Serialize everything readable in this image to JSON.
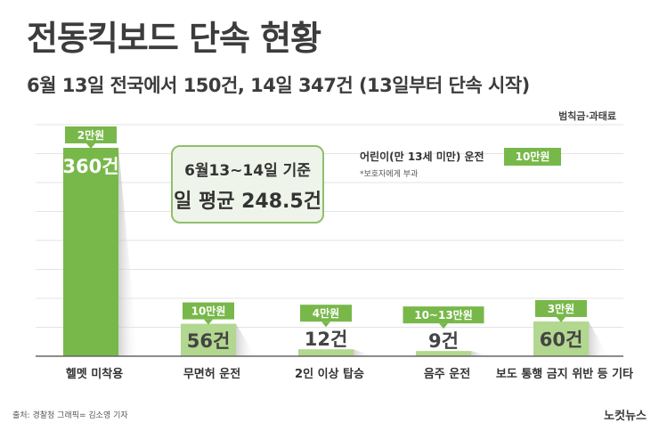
{
  "title": "전동킥보드 단속 현황",
  "subtitle": "6월 13일 전국에서 150건, 14일 347건 (13일부터 단속 시작)",
  "unit_label": "범칙금·과태료",
  "callout": {
    "line1": "6월13~14일 기준",
    "line2": "일 평균 248.5건"
  },
  "note": {
    "main": "어린이(만 13세 미만) 운전",
    "sub": "*보호자에게 부과",
    "tag": "10만원"
  },
  "footer": {
    "credit": "출처: 경찰청   그래픽= 김소영 기자",
    "logo": "노컷뉴스"
  },
  "colors": {
    "bar": "#78b84a",
    "bar_light": "#b2d78f",
    "tag": "#78b84a",
    "grid": "#e3e3e3"
  },
  "chart_data": {
    "type": "bar",
    "categories": [
      "헬멧 미착용",
      "무면허 운전",
      "2인 이상 탑승",
      "음주 운전",
      "보도 통행 금지 위반 등 기타"
    ],
    "values": [
      360,
      56,
      12,
      9,
      60
    ],
    "value_labels": [
      "360건",
      "56건",
      "12건",
      "9건",
      "60건"
    ],
    "fine_tags": [
      "2만원",
      "10만원",
      "4만원",
      "10~13만원",
      "3만원"
    ],
    "ylim": [
      0,
      400
    ],
    "grid": true
  }
}
